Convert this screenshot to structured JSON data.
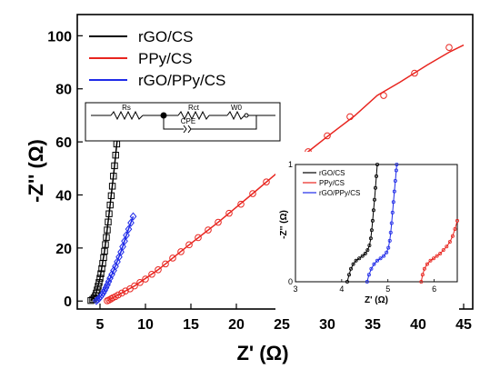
{
  "chart_data": [
    {
      "type": "scatter",
      "xlabel": "Z' (Ω)",
      "ylabel": "-Z'' (Ω)",
      "xlim": [
        2.5,
        46
      ],
      "ylim": [
        -3,
        108
      ],
      "xticks": [
        "5",
        "10",
        "15",
        "20",
        "25",
        "30",
        "35",
        "40",
        "45"
      ],
      "yticks": [
        "0",
        "20",
        "40",
        "60",
        "80",
        "100"
      ],
      "legend_position": "top-left",
      "grid": false,
      "series": [
        {
          "name": "rGO/CS",
          "color": "#000000",
          "marker": "square",
          "points": [
            [
              4.0,
              0.2
            ],
            [
              4.2,
              0.6
            ],
            [
              4.35,
              1.2
            ],
            [
              4.5,
              2.0
            ],
            [
              4.6,
              3.0
            ],
            [
              4.7,
              4.2
            ],
            [
              4.8,
              5.6
            ],
            [
              4.9,
              7.0
            ],
            [
              5.0,
              8.6
            ],
            [
              5.1,
              10.3
            ],
            [
              5.2,
              12.2
            ],
            [
              5.3,
              14.2
            ],
            [
              5.4,
              16.4
            ],
            [
              5.5,
              18.8
            ],
            [
              5.6,
              21.3
            ],
            [
              5.7,
              24.0
            ],
            [
              5.8,
              26.8
            ],
            [
              5.9,
              29.8
            ],
            [
              6.0,
              32.9
            ],
            [
              6.12,
              36.2
            ],
            [
              6.24,
              39.7
            ],
            [
              6.36,
              43.3
            ],
            [
              6.48,
              47.1
            ],
            [
              6.6,
              51.0
            ],
            [
              6.72,
              55.0
            ],
            [
              6.84,
              59.2
            ],
            [
              6.96,
              63.0
            ]
          ],
          "fit": [
            [
              4.0,
              0.2
            ],
            [
              4.5,
              2.0
            ],
            [
              5.0,
              8.6
            ],
            [
              5.5,
              18.8
            ],
            [
              6.0,
              32.9
            ],
            [
              6.5,
              47.8
            ],
            [
              6.96,
              63.0
            ]
          ]
        },
        {
          "name": "PPy/CS",
          "color": "#e8251f",
          "marker": "circle",
          "points": [
            [
              5.8,
              0.1
            ],
            [
              6.0,
              0.4
            ],
            [
              6.2,
              0.8
            ],
            [
              6.4,
              1.2
            ],
            [
              6.7,
              1.7
            ],
            [
              7.0,
              2.3
            ],
            [
              7.4,
              3.0
            ],
            [
              7.8,
              3.8
            ],
            [
              8.3,
              4.6
            ],
            [
              8.8,
              5.7
            ],
            [
              9.4,
              7.0
            ],
            [
              10.0,
              8.3
            ],
            [
              10.7,
              10.1
            ],
            [
              11.4,
              11.8
            ],
            [
              12.2,
              14.0
            ],
            [
              13.0,
              16.2
            ],
            [
              13.9,
              18.6
            ],
            [
              14.8,
              21.2
            ],
            [
              15.8,
              23.9
            ],
            [
              16.9,
              26.8
            ],
            [
              18.0,
              29.7
            ],
            [
              19.2,
              33.1
            ],
            [
              20.5,
              36.5
            ],
            [
              21.8,
              40.5
            ],
            [
              23.3,
              44.9
            ],
            [
              24.8,
              49.2
            ],
            [
              26.3,
              52.8
            ],
            [
              27.9,
              56.3
            ],
            [
              30.0,
              62.3
            ],
            [
              32.5,
              69.5
            ],
            [
              36.2,
              77.5
            ],
            [
              39.6,
              85.9
            ],
            [
              43.4,
              95.6
            ]
          ],
          "fit": [
            [
              5.8,
              0.1
            ],
            [
              7.0,
              2.3
            ],
            [
              8.8,
              5.7
            ],
            [
              11.4,
              11.8
            ],
            [
              14.8,
              21.2
            ],
            [
              18.0,
              29.7
            ],
            [
              21.8,
              40.5
            ],
            [
              24.8,
              49.2
            ],
            [
              27.9,
              56.3
            ],
            [
              30.0,
              62.0
            ],
            [
              33.0,
              69.8
            ],
            [
              35.5,
              77.5
            ],
            [
              38.0,
              82.5
            ],
            [
              41.0,
              89.0
            ],
            [
              43.5,
              94.0
            ],
            [
              45.0,
              96.5
            ]
          ]
        },
        {
          "name": "rGO/PPy/CS",
          "color": "#1f2be8",
          "marker": "diamond",
          "points": [
            [
              4.6,
              0.1
            ],
            [
              4.75,
              0.5
            ],
            [
              4.9,
              1.0
            ],
            [
              5.05,
              1.6
            ],
            [
              5.2,
              2.3
            ],
            [
              5.35,
              3.1
            ],
            [
              5.5,
              4.0
            ],
            [
              5.65,
              5.0
            ],
            [
              5.8,
              6.1
            ],
            [
              5.95,
              7.3
            ],
            [
              6.1,
              8.6
            ],
            [
              6.3,
              10.0
            ],
            [
              6.5,
              11.5
            ],
            [
              6.7,
              13.1
            ],
            [
              6.9,
              14.8
            ],
            [
              7.1,
              16.6
            ],
            [
              7.3,
              18.5
            ],
            [
              7.5,
              20.5
            ],
            [
              7.7,
              22.6
            ],
            [
              7.9,
              24.8
            ],
            [
              8.15,
              27.1
            ],
            [
              8.4,
              29.5
            ],
            [
              8.65,
              31.9
            ]
          ],
          "fit": [
            [
              4.6,
              0.1
            ],
            [
              5.2,
              2.3
            ],
            [
              5.8,
              6.1
            ],
            [
              6.5,
              11.5
            ],
            [
              7.3,
              18.5
            ],
            [
              8.0,
              25.8
            ],
            [
              8.65,
              31.9
            ]
          ]
        }
      ]
    },
    {
      "type": "scatter",
      "xlabel": "Z' (Ω)",
      "ylabel": "-Z'' (Ω)",
      "xlim": [
        3,
        6.5
      ],
      "ylim": [
        0,
        1
      ],
      "xticks": [
        "3",
        "4",
        "5",
        "6"
      ],
      "yticks": [
        "0",
        "1"
      ],
      "legend_position": "top-left",
      "series": [
        {
          "name": "rGO/CS",
          "color": "#000000",
          "points": [
            [
              4.12,
              0.0
            ],
            [
              4.16,
              0.06
            ],
            [
              4.2,
              0.11
            ],
            [
              4.25,
              0.15
            ],
            [
              4.31,
              0.18
            ],
            [
              4.38,
              0.2
            ],
            [
              4.45,
              0.22
            ],
            [
              4.51,
              0.24
            ],
            [
              4.56,
              0.27
            ],
            [
              4.6,
              0.31
            ],
            [
              4.63,
              0.37
            ],
            [
              4.65,
              0.44
            ],
            [
              4.67,
              0.52
            ],
            [
              4.69,
              0.61
            ],
            [
              4.71,
              0.7
            ],
            [
              4.73,
              0.8
            ],
            [
              4.75,
              0.9
            ],
            [
              4.77,
              1.0
            ]
          ]
        },
        {
          "name": "PPy/CS",
          "color": "#e8251f",
          "points": [
            [
              5.72,
              0.0
            ],
            [
              5.75,
              0.06
            ],
            [
              5.79,
              0.11
            ],
            [
              5.85,
              0.15
            ],
            [
              5.92,
              0.18
            ],
            [
              5.99,
              0.2
            ],
            [
              6.06,
              0.22
            ],
            [
              6.13,
              0.24
            ],
            [
              6.2,
              0.27
            ],
            [
              6.27,
              0.3
            ],
            [
              6.34,
              0.34
            ],
            [
              6.4,
              0.39
            ],
            [
              6.45,
              0.45
            ],
            [
              6.5,
              0.52
            ]
          ]
        },
        {
          "name": "rGO/PPy/CS",
          "color": "#1f2be8",
          "points": [
            [
              4.55,
              0.0
            ],
            [
              4.59,
              0.06
            ],
            [
              4.64,
              0.11
            ],
            [
              4.7,
              0.15
            ],
            [
              4.77,
              0.18
            ],
            [
              4.84,
              0.2
            ],
            [
              4.91,
              0.22
            ],
            [
              4.97,
              0.25
            ],
            [
              5.01,
              0.29
            ],
            [
              5.04,
              0.35
            ],
            [
              5.06,
              0.42
            ],
            [
              5.08,
              0.5
            ],
            [
              5.1,
              0.59
            ],
            [
              5.12,
              0.68
            ],
            [
              5.14,
              0.77
            ],
            [
              5.16,
              0.86
            ],
            [
              5.18,
              0.95
            ],
            [
              5.19,
              1.0
            ]
          ]
        }
      ]
    }
  ],
  "circuit": {
    "rs_label": "Rs",
    "rct_label": "Rct",
    "w0_label": "W0",
    "cpe_label": "CPE"
  }
}
